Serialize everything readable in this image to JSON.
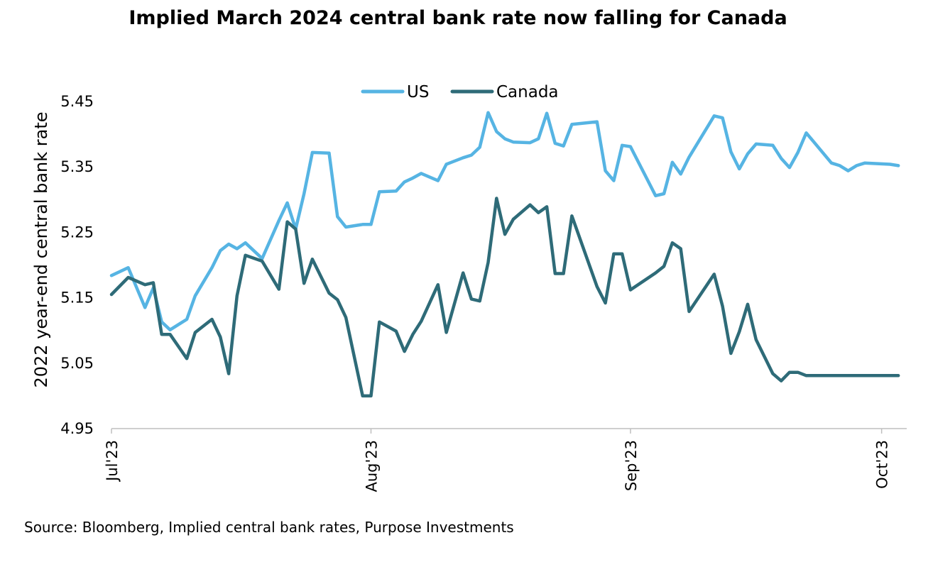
{
  "chart_data": {
    "type": "line",
    "title": "Implied March 2024 central bank rate now falling for Canada",
    "xlabel": "",
    "ylabel": "2022 year-end central bank rate",
    "source": "Source: Bloomberg, Implied central bank rates, Purpose Investments",
    "ylim": [
      4.95,
      5.45
    ],
    "yticks": [
      "4.95",
      "5.05",
      "5.15",
      "5.25",
      "5.35",
      "5.45"
    ],
    "xlim": [
      "2023-07-01",
      "2023-10-04"
    ],
    "xticks": [
      {
        "date": "2023-07-01",
        "label": "Jul'23"
      },
      {
        "date": "2023-08-01",
        "label": "Aug'23"
      },
      {
        "date": "2023-09-01",
        "label": "Sep'23"
      },
      {
        "date": "2023-10-01",
        "label": "Oct'23"
      }
    ],
    "grid": false,
    "legend": "top-center",
    "x": [
      "2023-07-01",
      "2023-07-03",
      "2023-07-05",
      "2023-07-06",
      "2023-07-07",
      "2023-07-08",
      "2023-07-10",
      "2023-07-11",
      "2023-07-13",
      "2023-07-14",
      "2023-07-15",
      "2023-07-16",
      "2023-07-17",
      "2023-07-19",
      "2023-07-21",
      "2023-07-22",
      "2023-07-23",
      "2023-07-24",
      "2023-07-25",
      "2023-07-27",
      "2023-07-28",
      "2023-07-29",
      "2023-07-31",
      "2023-08-01",
      "2023-08-02",
      "2023-08-04",
      "2023-08-05",
      "2023-08-06",
      "2023-08-07",
      "2023-08-09",
      "2023-08-10",
      "2023-08-12",
      "2023-08-13",
      "2023-08-14",
      "2023-08-15",
      "2023-08-16",
      "2023-08-17",
      "2023-08-18",
      "2023-08-20",
      "2023-08-21",
      "2023-08-22",
      "2023-08-23",
      "2023-08-24",
      "2023-08-25",
      "2023-08-28",
      "2023-08-29",
      "2023-08-30",
      "2023-08-31",
      "2023-09-01",
      "2023-09-04",
      "2023-09-05",
      "2023-09-06",
      "2023-09-07",
      "2023-09-08",
      "2023-09-11",
      "2023-09-12",
      "2023-09-13",
      "2023-09-14",
      "2023-09-15",
      "2023-09-16",
      "2023-09-18",
      "2023-09-19",
      "2023-09-20",
      "2023-09-21",
      "2023-09-22",
      "2023-09-25",
      "2023-09-26",
      "2023-09-27",
      "2023-09-28",
      "2023-09-29",
      "2023-10-02",
      "2023-10-03"
    ],
    "series": [
      {
        "name": "US",
        "color": "#56b4e3",
        "values": [
          5.184,
          5.196,
          5.135,
          5.165,
          5.113,
          5.101,
          5.117,
          5.153,
          5.196,
          5.222,
          5.232,
          5.225,
          5.234,
          5.21,
          5.268,
          5.295,
          5.255,
          5.309,
          5.372,
          5.371,
          5.274,
          5.258,
          5.262,
          5.262,
          5.312,
          5.313,
          5.327,
          5.333,
          5.34,
          5.329,
          5.354,
          5.364,
          5.368,
          5.38,
          5.433,
          5.404,
          5.393,
          5.388,
          5.387,
          5.393,
          5.432,
          5.386,
          5.382,
          5.415,
          5.419,
          5.344,
          5.329,
          5.383,
          5.381,
          5.306,
          5.309,
          5.357,
          5.339,
          5.365,
          5.428,
          5.425,
          5.373,
          5.347,
          5.37,
          5.385,
          5.383,
          5.363,
          5.349,
          5.372,
          5.402,
          5.356,
          5.352,
          5.344,
          5.352,
          5.356,
          5.354,
          5.352
        ]
      },
      {
        "name": "Canada",
        "color": "#2e6b78",
        "values": [
          5.155,
          5.181,
          5.17,
          5.173,
          5.094,
          5.094,
          5.057,
          5.097,
          5.117,
          5.09,
          5.034,
          5.153,
          5.215,
          5.206,
          5.163,
          5.266,
          5.255,
          5.172,
          5.209,
          5.157,
          5.147,
          5.12,
          5.0,
          5.0,
          5.113,
          5.099,
          5.068,
          5.094,
          5.114,
          5.17,
          5.097,
          5.188,
          5.148,
          5.145,
          5.204,
          5.302,
          5.247,
          5.27,
          5.292,
          5.28,
          5.289,
          5.187,
          5.187,
          5.275,
          5.167,
          5.142,
          5.217,
          5.217,
          5.162,
          5.188,
          5.198,
          5.234,
          5.225,
          5.129,
          5.186,
          5.137,
          5.065,
          5.098,
          5.14,
          5.086,
          5.034,
          5.023,
          5.036,
          5.036,
          5.031,
          5.031,
          5.031,
          5.031,
          5.031,
          5.031,
          5.031,
          5.031
        ]
      }
    ]
  }
}
